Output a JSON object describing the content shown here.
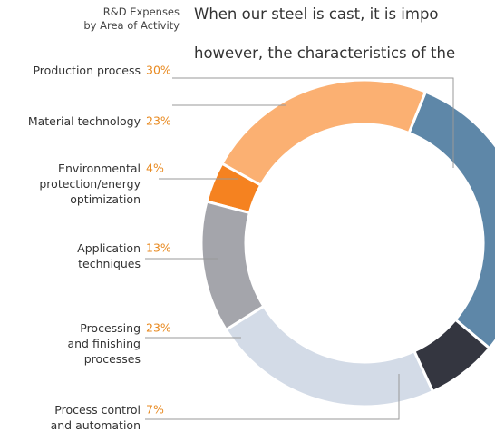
{
  "chart_data": {
    "type": "donut",
    "title": "R&D Expenses\nby Area of Activity",
    "body_text": [
      "When our steel is cast, it is impo",
      "however, the characteristics of the"
    ],
    "categories": [
      "Production process",
      "Material technology",
      "Environmental\nprotection/energy\noptimization",
      "Application\ntechniques",
      "Processing\nand finishing\nprocesses",
      "Process control\nand automation"
    ],
    "values": [
      30,
      23,
      4,
      13,
      23,
      7
    ],
    "value_labels": [
      "30%",
      "23%",
      "4%",
      "13%",
      "23%",
      "7%"
    ],
    "colors": [
      "#5e87a8",
      "#fbb072",
      "#f58220",
      "#a4a5ab",
      "#d3dbe7",
      "#343640"
    ],
    "label_color": "#e8891f"
  }
}
